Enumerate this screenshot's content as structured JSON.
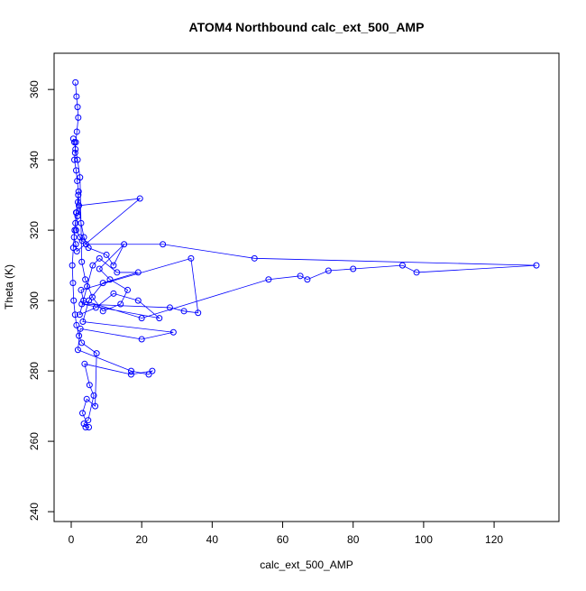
{
  "chart_data": {
    "type": "line",
    "title": "ATOM4 Northbound calc_ext_500_AMP",
    "x_label": "calc_ext_500_AMP",
    "y_label": "Theta (K)",
    "color": "#0000ff",
    "markers": true,
    "x": [
      1.2,
      1.5,
      1.8,
      2.0,
      1.6,
      1.3,
      1.1,
      0.9,
      1.4,
      1.7,
      2.1,
      1.9,
      1.5,
      1.2,
      1.0,
      0.8,
      1.3,
      1.6,
      19.5,
      2.2,
      1.8,
      1.4,
      2.5,
      3.1,
      4.2,
      26,
      52,
      132,
      98,
      94,
      80,
      73,
      67,
      65,
      56,
      20,
      3.5,
      2.8,
      34,
      36,
      32,
      28,
      3.0,
      25,
      19,
      12,
      7,
      2.4,
      4.5,
      6.1,
      8,
      13,
      19,
      9,
      5,
      3.3,
      29,
      20,
      2.6,
      1.9,
      17,
      22,
      23,
      17,
      3.8,
      5.2,
      6.4,
      4.8,
      3.6,
      4.1,
      5.0,
      3.2,
      4.4,
      6.8,
      7.2,
      3.0,
      2.2,
      1.5,
      1.1,
      0.7,
      0.5,
      0.3,
      0.6,
      1.0,
      1.4,
      2.0,
      2.8,
      3.6,
      4.9,
      10,
      12,
      15,
      8,
      11,
      16,
      14,
      9,
      6,
      4,
      3,
      2.5,
      1.8,
      1.2,
      0.9,
      0.6
    ],
    "values": [
      362,
      358,
      355,
      352,
      348,
      345,
      342,
      340,
      337,
      334,
      331,
      328,
      325,
      322,
      320,
      318,
      316,
      314,
      329,
      327,
      324,
      320,
      318,
      317,
      316,
      316,
      312,
      310,
      308,
      310,
      309,
      308.5,
      306,
      307,
      306,
      295,
      300,
      303,
      312,
      296.5,
      297,
      298,
      299,
      295,
      300,
      302,
      298,
      296,
      304,
      310,
      312,
      308,
      308,
      305,
      300,
      294,
      291,
      289,
      292,
      286,
      280,
      279,
      280,
      279,
      282,
      276,
      273,
      266,
      265,
      264,
      264,
      268,
      272,
      270,
      285,
      288,
      290,
      293,
      296,
      300,
      305,
      310,
      315,
      320,
      325,
      330,
      322,
      318,
      315,
      313,
      310,
      316,
      309,
      306,
      303,
      299,
      297,
      301,
      306,
      311,
      335,
      340,
      343,
      345,
      346
    ],
    "xlim": [
      -4.86,
      138.4
    ],
    "ylim": [
      237.2,
      370.3
    ],
    "xticks": [
      0,
      20,
      40,
      60,
      80,
      100,
      120
    ],
    "yticks": [
      240,
      260,
      280,
      300,
      320,
      340,
      360
    ]
  }
}
